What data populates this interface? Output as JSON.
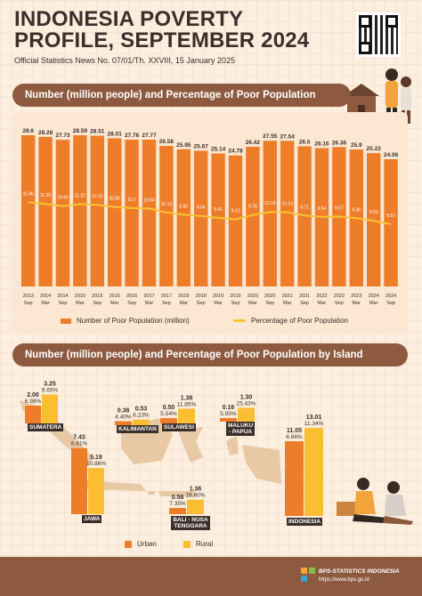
{
  "header": {
    "title_line1": "INDONESIA POVERTY",
    "title_line2": "PROFILE, SEPTEMBER 2024",
    "subtitle": "Official Statistics News No. 07/01/Th. XXVIII, 15 January 2025"
  },
  "colors": {
    "bar": "#ee7d2a",
    "line": "#f8c437",
    "brown": "#8e5a3f",
    "urban": "#ee7d2a",
    "rural": "#fbbd32"
  },
  "section1": {
    "title": "Number (million people) and Percentage of Poor Population"
  },
  "section2": {
    "title": "Number (million people) and Percentage of Poor Population by Island"
  },
  "chart_data": [
    {
      "type": "bar",
      "title": "Number (million people) and Percentage of Poor Population",
      "years": [
        "2013",
        "2014",
        "2014",
        "2015",
        "2015",
        "2016",
        "2016",
        "2017",
        "2017",
        "2018",
        "2018",
        "2019",
        "2019",
        "2020",
        "2020",
        "2021",
        "2021",
        "2022",
        "2022",
        "2023",
        "2024",
        "2024"
      ],
      "months": [
        "Sep",
        "Mar",
        "Sep",
        "Mar",
        "Sep",
        "Mar",
        "Sep",
        "Mar",
        "Sep",
        "Mar",
        "Sep",
        "Mar",
        "Sep",
        "Mar",
        "Sep",
        "Mar",
        "Sep",
        "Mar",
        "Sep",
        "Mar",
        "Mar",
        "Sep"
      ],
      "series": [
        {
          "name": "Number of Poor Population (million)",
          "values": [
            28.6,
            28.28,
            27.73,
            28.59,
            28.51,
            28.01,
            27.76,
            27.77,
            26.58,
            25.95,
            25.67,
            25.14,
            24.78,
            26.42,
            27.55,
            27.54,
            26.5,
            26.16,
            26.36,
            25.9,
            25.22,
            24.06
          ]
        },
        {
          "name": "Percentage of Poor Population",
          "values": [
            11.46,
            11.25,
            10.96,
            11.22,
            11.13,
            10.86,
            10.7,
            10.64,
            10.12,
            9.82,
            9.66,
            9.41,
            9.22,
            9.78,
            10.19,
            10.14,
            9.71,
            9.54,
            9.57,
            9.36,
            9.03,
            8.57
          ]
        }
      ]
    },
    {
      "type": "bar",
      "title": "Number (million people) and Percentage of Poor Population by Island",
      "series_names": [
        "Urban",
        "Rural"
      ],
      "regions": [
        {
          "name": "SUMATERA",
          "urban": 2.0,
          "urban_pct": "6.98%",
          "rural": 3.25,
          "rural_pct": "9.65%"
        },
        {
          "name": "JAWA",
          "urban": 7.43,
          "urban_pct": "6.81%",
          "rural": 5.19,
          "rural_pct": "10.86%"
        },
        {
          "name": "KALIMANTAN",
          "urban": 0.38,
          "urban_pct": "4.40%",
          "rural": 0.53,
          "rural_pct": "6.23%"
        },
        {
          "name": "SULAWESI",
          "urban": 0.5,
          "urban_pct": "5.54%",
          "rural": 1.38,
          "rural_pct": "11.85%"
        },
        {
          "name": "MALUKU - PAPUA",
          "urban": 0.16,
          "urban_pct": "5.95%",
          "rural": 1.3,
          "rural_pct": "25.43%"
        },
        {
          "name": "BALI - NUSA TENGGARA",
          "urban": 0.58,
          "urban_pct": "7.35%",
          "rural": 1.36,
          "rural_pct": "16.80%"
        },
        {
          "name": "INDONESIA",
          "urban": 11.05,
          "urban_pct": "6.66%",
          "rural": 13.01,
          "rural_pct": "11.34%"
        }
      ]
    }
  ],
  "footer": {
    "org": "BPS-STATISTICS INDONESIA",
    "url": "https://www.bps.go.id"
  }
}
